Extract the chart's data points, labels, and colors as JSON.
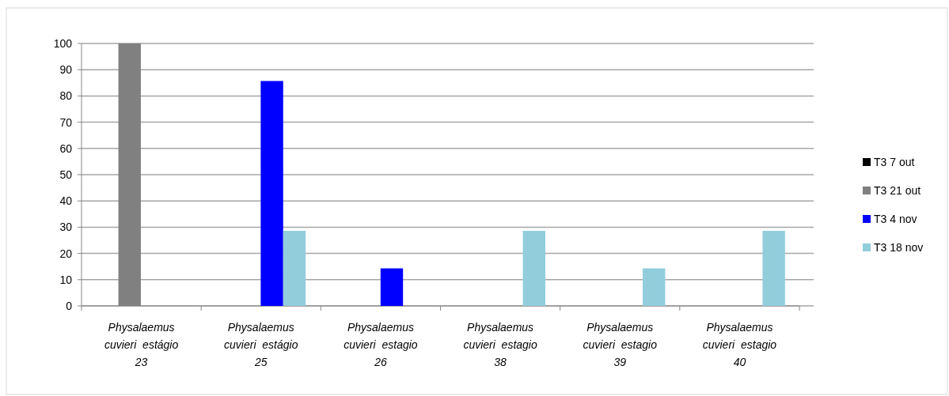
{
  "chart_data": {
    "type": "bar",
    "categories": [
      "Physalaemus cuvieri estágio 23",
      "Physalaemus cuvieri estágio 25",
      "Physalaemus cuvieri estagio 26",
      "Physalaemus cuvieri estagio 38",
      "Physalaemus cuvieri estagio 39",
      "Physalaemus cuvieri estagio 40"
    ],
    "series": [
      {
        "name": "T3 7 out",
        "color": "#000000",
        "values": [
          0,
          0,
          0,
          0,
          0,
          0
        ]
      },
      {
        "name": "T3 21 out",
        "color": "#808080",
        "values": [
          100,
          0,
          0,
          0,
          0,
          0
        ]
      },
      {
        "name": "T3 4 nov",
        "color": "#0000ff",
        "values": [
          0,
          85.7,
          14.3,
          0,
          0,
          0
        ]
      },
      {
        "name": "T3 18 nov",
        "color": "#92cddc",
        "values": [
          0,
          28.6,
          0,
          28.6,
          14.3,
          28.6
        ]
      }
    ],
    "ylim": [
      0,
      100
    ],
    "yticks": [
      0,
      10,
      20,
      30,
      40,
      50,
      60,
      70,
      80,
      90,
      100
    ],
    "grid": "y",
    "legend": "right"
  }
}
